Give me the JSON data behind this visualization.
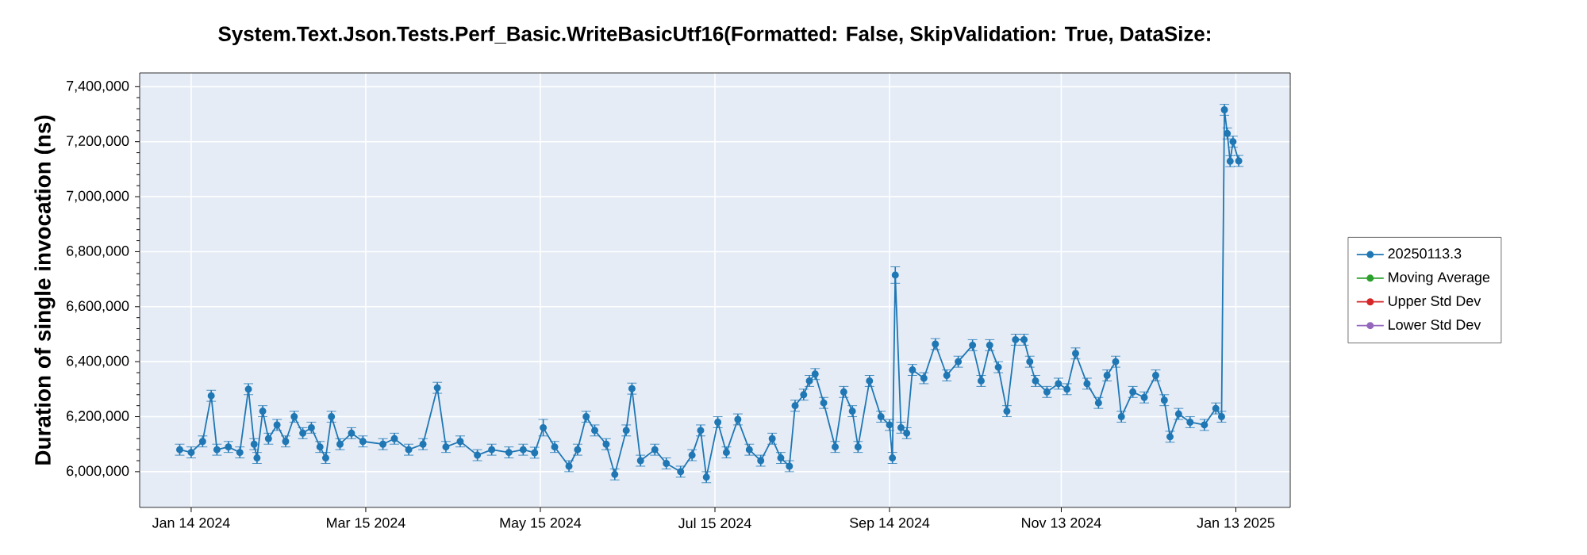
{
  "chart_data": {
    "type": "line",
    "title": "System.Text.Json.Tests.Perf_Basic.WriteBasicUtf16(Formatted: False, SkipValidation: True, DataSize:",
    "ylabel": "Duration of single invocation (ns)",
    "x": [
      "2024-01-10",
      "2024-01-14",
      "2024-01-18",
      "2024-01-21",
      "2024-01-23",
      "2024-01-27",
      "2024-01-31",
      "2024-02-03",
      "2024-02-05",
      "2024-02-06",
      "2024-02-08",
      "2024-02-10",
      "2024-02-13",
      "2024-02-16",
      "2024-02-19",
      "2024-02-22",
      "2024-02-25",
      "2024-02-28",
      "2024-03-01",
      "2024-03-03",
      "2024-03-06",
      "2024-03-10",
      "2024-03-14",
      "2024-03-21",
      "2024-03-25",
      "2024-03-30",
      "2024-04-04",
      "2024-04-09",
      "2024-04-12",
      "2024-04-17",
      "2024-04-23",
      "2024-04-28",
      "2024-05-04",
      "2024-05-09",
      "2024-05-13",
      "2024-05-16",
      "2024-05-20",
      "2024-05-25",
      "2024-05-28",
      "2024-05-31",
      "2024-06-03",
      "2024-06-07",
      "2024-06-10",
      "2024-06-14",
      "2024-06-16",
      "2024-06-19",
      "2024-06-24",
      "2024-06-28",
      "2024-07-03",
      "2024-07-07",
      "2024-07-10",
      "2024-07-12",
      "2024-07-16",
      "2024-07-19",
      "2024-07-23",
      "2024-07-27",
      "2024-07-31",
      "2024-08-04",
      "2024-08-07",
      "2024-08-10",
      "2024-08-12",
      "2024-08-15",
      "2024-08-17",
      "2024-08-19",
      "2024-08-22",
      "2024-08-26",
      "2024-08-29",
      "2024-09-01",
      "2024-09-03",
      "2024-09-07",
      "2024-09-11",
      "2024-09-14",
      "2024-09-15",
      "2024-09-16",
      "2024-09-18",
      "2024-09-20",
      "2024-09-22",
      "2024-09-26",
      "2024-09-30",
      "2024-10-04",
      "2024-10-08",
      "2024-10-13",
      "2024-10-16",
      "2024-10-19",
      "2024-10-22",
      "2024-10-25",
      "2024-10-28",
      "2024-10-31",
      "2024-11-02",
      "2024-11-04",
      "2024-11-08",
      "2024-11-12",
      "2024-11-15",
      "2024-11-18",
      "2024-11-22",
      "2024-11-26",
      "2024-11-29",
      "2024-12-02",
      "2024-12-04",
      "2024-12-08",
      "2024-12-12",
      "2024-12-16",
      "2024-12-19",
      "2024-12-21",
      "2024-12-24",
      "2024-12-28",
      "2025-01-02",
      "2025-01-06",
      "2025-01-08",
      "2025-01-09",
      "2025-01-10",
      "2025-01-11",
      "2025-01-12",
      "2025-01-14"
    ],
    "series": [
      {
        "name": "20250113.3",
        "color": "#1f77b4",
        "values": [
          6080000,
          6070000,
          6110000,
          6276000,
          6080000,
          6090000,
          6070000,
          6300000,
          6100000,
          6050000,
          6220000,
          6120000,
          6170000,
          6110000,
          6200000,
          6140000,
          6160000,
          6090000,
          6050000,
          6200000,
          6100000,
          6140000,
          6110000,
          6100000,
          6120000,
          6080000,
          6100000,
          6305000,
          6090000,
          6110000,
          6060000,
          6080000,
          6070000,
          6080000,
          6069000,
          6160000,
          6090000,
          6020000,
          6080000,
          6200000,
          6150000,
          6100000,
          5990000,
          6150000,
          6302000,
          6040000,
          6080000,
          6030000,
          6000000,
          6060000,
          6150000,
          5980000,
          6180000,
          6070000,
          6190000,
          6080000,
          6040000,
          6120000,
          6050000,
          6020000,
          6240000,
          6280000,
          6330000,
          6355000,
          6250000,
          6090000,
          6290000,
          6220000,
          6090000,
          6330000,
          6200000,
          6170000,
          6050000,
          6715000,
          6160000,
          6140000,
          6370000,
          6340000,
          6464000,
          6350000,
          6400000,
          6460000,
          6330000,
          6460000,
          6380000,
          6220000,
          6480000,
          6480000,
          6400000,
          6330000,
          6290000,
          6320000,
          6300000,
          6430000,
          6320000,
          6250000,
          6350000,
          6400000,
          6200000,
          6290000,
          6270000,
          6350000,
          6260000,
          6127000,
          6210000,
          6180000,
          6170000,
          6230000,
          6200000,
          7316000,
          7230000,
          7129000,
          7200000,
          7130000
        ],
        "errors": [
          20000,
          20000,
          20000,
          20000,
          20000,
          20000,
          20000,
          20000,
          20000,
          20000,
          20000,
          20000,
          20000,
          20000,
          20000,
          20000,
          20000,
          20000,
          20000,
          20000,
          20000,
          20000,
          20000,
          20000,
          20000,
          20000,
          20000,
          20000,
          20000,
          20000,
          20000,
          20000,
          20000,
          20000,
          20000,
          30000,
          20000,
          20000,
          20000,
          20000,
          20000,
          20000,
          20000,
          20000,
          20000,
          20000,
          20000,
          20000,
          20000,
          20000,
          20000,
          20000,
          20000,
          20000,
          20000,
          20000,
          20000,
          20000,
          20000,
          20000,
          20000,
          20000,
          20000,
          20000,
          20000,
          20000,
          20000,
          20000,
          20000,
          20000,
          20000,
          20000,
          20000,
          30000,
          20000,
          20000,
          20000,
          20000,
          20000,
          20000,
          20000,
          20000,
          20000,
          20000,
          20000,
          20000,
          20000,
          20000,
          20000,
          20000,
          20000,
          20000,
          20000,
          20000,
          20000,
          20000,
          20000,
          20000,
          20000,
          20000,
          20000,
          20000,
          20000,
          20000,
          20000,
          20000,
          20000,
          20000,
          20000,
          20000,
          20000,
          20000,
          20000,
          20000
        ]
      },
      {
        "name": "Moving Average",
        "color": "#2ca02c",
        "values": [
          null,
          null,
          null,
          null,
          null,
          null,
          null,
          null,
          null,
          null,
          null,
          null,
          null,
          null,
          null,
          null,
          null,
          null,
          null,
          null,
          null,
          null,
          null,
          null,
          null,
          null,
          null,
          null,
          null,
          null,
          null,
          null,
          null,
          null,
          null,
          null,
          null,
          null,
          null,
          null,
          null,
          null,
          null,
          null,
          null,
          null,
          null,
          null,
          null,
          null,
          null,
          null,
          null,
          null,
          null,
          null,
          null,
          null,
          null,
          null,
          null,
          null,
          null,
          null,
          null,
          null,
          null,
          null,
          null,
          null,
          null,
          null,
          null,
          null,
          null,
          null,
          null,
          null,
          null,
          null,
          null,
          null,
          null,
          null,
          null,
          null,
          null,
          null,
          null,
          null,
          null,
          null,
          null,
          null,
          null,
          null,
          null,
          null,
          null,
          null,
          null,
          null,
          null,
          null,
          null,
          null,
          null,
          null,
          null,
          null,
          null,
          null,
          null,
          null
        ]
      },
      {
        "name": "Upper Std Dev",
        "color": "#d62728",
        "values": [
          null,
          null,
          null,
          null,
          null,
          null,
          null,
          null,
          null,
          null,
          null,
          null,
          null,
          null,
          null,
          null,
          null,
          null,
          null,
          null,
          null,
          null,
          null,
          null,
          null,
          null,
          null,
          null,
          null,
          null,
          null,
          null,
          null,
          null,
          null,
          null,
          null,
          null,
          null,
          null,
          null,
          null,
          null,
          null,
          null,
          null,
          null,
          null,
          null,
          null,
          null,
          null,
          null,
          null,
          null,
          null,
          null,
          null,
          null,
          null,
          null,
          null,
          null,
          null,
          null,
          null,
          null,
          null,
          null,
          null,
          null,
          null,
          null,
          null,
          null,
          null,
          null,
          null,
          null,
          null,
          null,
          null,
          null,
          null,
          null,
          null,
          null,
          null,
          null,
          null,
          null,
          null,
          null,
          null,
          null,
          null,
          null,
          null,
          null,
          null,
          null,
          null,
          null,
          null,
          null,
          null,
          null,
          null,
          null,
          null,
          null,
          null,
          null,
          null
        ]
      },
      {
        "name": "Lower Std Dev",
        "color": "#9467bd",
        "values": [
          null,
          null,
          null,
          null,
          null,
          null,
          null,
          null,
          null,
          null,
          null,
          null,
          null,
          null,
          null,
          null,
          null,
          null,
          null,
          null,
          null,
          null,
          null,
          null,
          null,
          null,
          null,
          null,
          null,
          null,
          null,
          null,
          null,
          null,
          null,
          null,
          null,
          null,
          null,
          null,
          null,
          null,
          null,
          null,
          null,
          null,
          null,
          null,
          null,
          null,
          null,
          null,
          null,
          null,
          null,
          null,
          null,
          null,
          null,
          null,
          null,
          null,
          null,
          null,
          null,
          null,
          null,
          null,
          null,
          null,
          null,
          null,
          null,
          null,
          null,
          null,
          null,
          null,
          null,
          null,
          null,
          null,
          null,
          null,
          null,
          null,
          null,
          null,
          null,
          null,
          null,
          null,
          null,
          null,
          null,
          null,
          null,
          null,
          null,
          null,
          null,
          null,
          null,
          null,
          null,
          null,
          null,
          null,
          null,
          null,
          null,
          null,
          null,
          null
        ]
      }
    ],
    "xlim": [
      "2023-12-27",
      "2025-02-01"
    ],
    "xticks": [
      {
        "value": "2024-01-14",
        "label": "Jan 14 2024"
      },
      {
        "value": "2024-03-15",
        "label": "Mar 15 2024"
      },
      {
        "value": "2024-05-15",
        "label": "May 15 2024"
      },
      {
        "value": "2024-07-15",
        "label": "Jul 15 2024"
      },
      {
        "value": "2024-09-14",
        "label": "Sep 14 2024"
      },
      {
        "value": "2024-11-13",
        "label": "Nov 13 2024"
      },
      {
        "value": "2025-01-13",
        "label": "Jan 13 2025"
      }
    ],
    "ylim": [
      5870000,
      7450000
    ],
    "yticks": [
      {
        "value": 6000000,
        "label": "6,000,000"
      },
      {
        "value": 6200000,
        "label": "6,200,000"
      },
      {
        "value": 6400000,
        "label": "6,400,000"
      },
      {
        "value": 6600000,
        "label": "6,600,000"
      },
      {
        "value": 6800000,
        "label": "6,800,000"
      },
      {
        "value": 7000000,
        "label": "7,000,000"
      },
      {
        "value": 7200000,
        "label": "7,200,000"
      },
      {
        "value": 7400000,
        "label": "7,400,000"
      }
    ],
    "grid": true,
    "legend": "right",
    "marker": "circle",
    "line_style": "solid"
  }
}
